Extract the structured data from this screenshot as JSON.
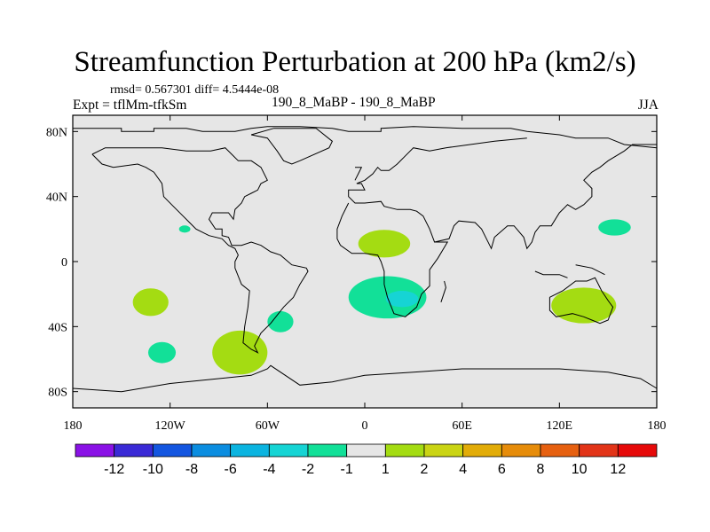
{
  "chart_data": {
    "type": "heatmap",
    "title": "Streamfunction Perturbation at 200 hPa (km2/s)",
    "stats_line": "rmsd= 0.567301 diff= 4.5444e-08",
    "left_label": "Expt = tflMm-tfkSm",
    "center_label": "190_8_MaBP - 190_8_MaBP",
    "right_label": "JJA",
    "x_axis": {
      "range": [
        -180,
        180
      ],
      "ticks": [
        -180,
        -120,
        -60,
        0,
        60,
        120,
        180
      ],
      "tick_labels": [
        "180",
        "120W",
        "60W",
        "0",
        "60E",
        "120E",
        "180"
      ]
    },
    "y_axis": {
      "range": [
        -90,
        90
      ],
      "ticks": [
        80,
        40,
        0,
        -40,
        -80
      ],
      "tick_labels": [
        "80N",
        "40N",
        "0",
        "40S",
        "80S"
      ]
    },
    "colorbar": {
      "labels": [
        "-12",
        "-10",
        "-8",
        "-6",
        "-4",
        "-2",
        "-1",
        "1",
        "2",
        "4",
        "6",
        "8",
        "10",
        "12"
      ],
      "colors": [
        "#8a12e6",
        "#3a2ad6",
        "#1456e0",
        "#0b8de0",
        "#0bb4e0",
        "#16d4d4",
        "#12e098",
        "#e6e6e6",
        "#a4dc12",
        "#cad414",
        "#e2ac08",
        "#e68c0a",
        "#e66010",
        "#e23418",
        "#e60a0a"
      ]
    },
    "background_color": "#e6e6e6",
    "contours": [
      {
        "label": "Pacific 20N",
        "level": "-1 to -2",
        "color": "#12e098",
        "lon": -111,
        "lat": 20,
        "rlon": 3.5,
        "rlat": 2.2
      },
      {
        "label": "South Pacific 25S",
        "level": "1 to 2",
        "color": "#a4dc12",
        "lon": -132,
        "lat": -25,
        "rlon": 11,
        "rlat": 8.5
      },
      {
        "label": "South Pacific 55S",
        "level": "-1 to -2",
        "color": "#12e098",
        "lon": -125,
        "lat": -56,
        "rlon": 8.5,
        "rlat": 6.5
      },
      {
        "label": "South Pacific 60S",
        "level": "1 to 2",
        "color": "#a4dc12",
        "lon": -77,
        "lat": -56,
        "rlon": 17,
        "rlat": 13.5
      },
      {
        "label": "South America 37S",
        "level": "-1 to -2",
        "color": "#12e098",
        "lon": -52,
        "lat": -37,
        "rlon": 8,
        "rlat": 6.5
      },
      {
        "label": "North Africa 12N",
        "level": "1 to 2",
        "color": "#a4dc12",
        "lon": 12,
        "lat": 11,
        "rlon": 16,
        "rlat": 8.5
      },
      {
        "label": "South Atlantic 20S",
        "level": "-1 to -2",
        "color": "#12e098",
        "lon": 14,
        "lat": -22,
        "rlon": 24,
        "rlat": 13
      },
      {
        "label": "South Atlantic core 23S",
        "level": "-2 to -4",
        "color": "#16d4d4",
        "lon": 23,
        "lat": -23,
        "rlon": 10,
        "rlat": 5
      },
      {
        "label": "Australia 25S",
        "level": "1 to 2",
        "color": "#a4dc12",
        "lon": 135,
        "lat": -27,
        "rlon": 20,
        "rlat": 11
      },
      {
        "label": "West Pacific 20N",
        "level": "-1 to -2",
        "color": "#12e098",
        "lon": 154,
        "lat": 21,
        "rlon": 10,
        "rlat": 5
      }
    ]
  }
}
